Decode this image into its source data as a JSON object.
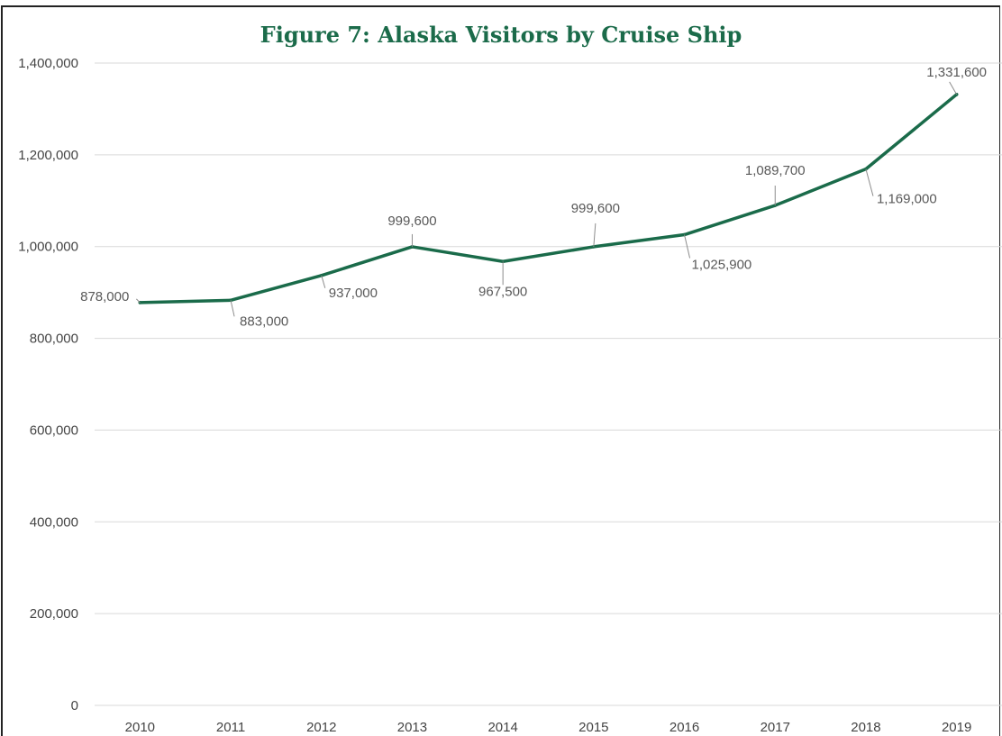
{
  "chart_data": {
    "type": "line",
    "title": "Figure 7: Alaska Visitors by Cruise Ship",
    "xlabel": "",
    "ylabel": "",
    "categories": [
      "2010",
      "2011",
      "2012",
      "2013",
      "2014",
      "2015",
      "2016",
      "2017",
      "2018",
      "2019"
    ],
    "series": [
      {
        "values": [
          878000,
          883000,
          937000,
          999600,
          967500,
          999600,
          1025900,
          1089700,
          1169000,
          1331600
        ],
        "data_labels": [
          "878,000",
          "883,000",
          "937,000",
          "999,600",
          "967,500",
          "999,600",
          "1,025,900",
          "1,089,700",
          "1,169,000",
          "1,331,600"
        ],
        "color": "#1a6b4a"
      }
    ],
    "ylim": [
      0,
      1400000
    ],
    "yticks": [
      0,
      200000,
      400000,
      600000,
      800000,
      1000000,
      1200000,
      1400000
    ],
    "ytick_labels": [
      "0",
      "200,000",
      "400,000",
      "600,000",
      "800,000",
      "1,000,000",
      "1,200,000",
      "1,400,000"
    ],
    "grid": true,
    "legend": "none"
  }
}
